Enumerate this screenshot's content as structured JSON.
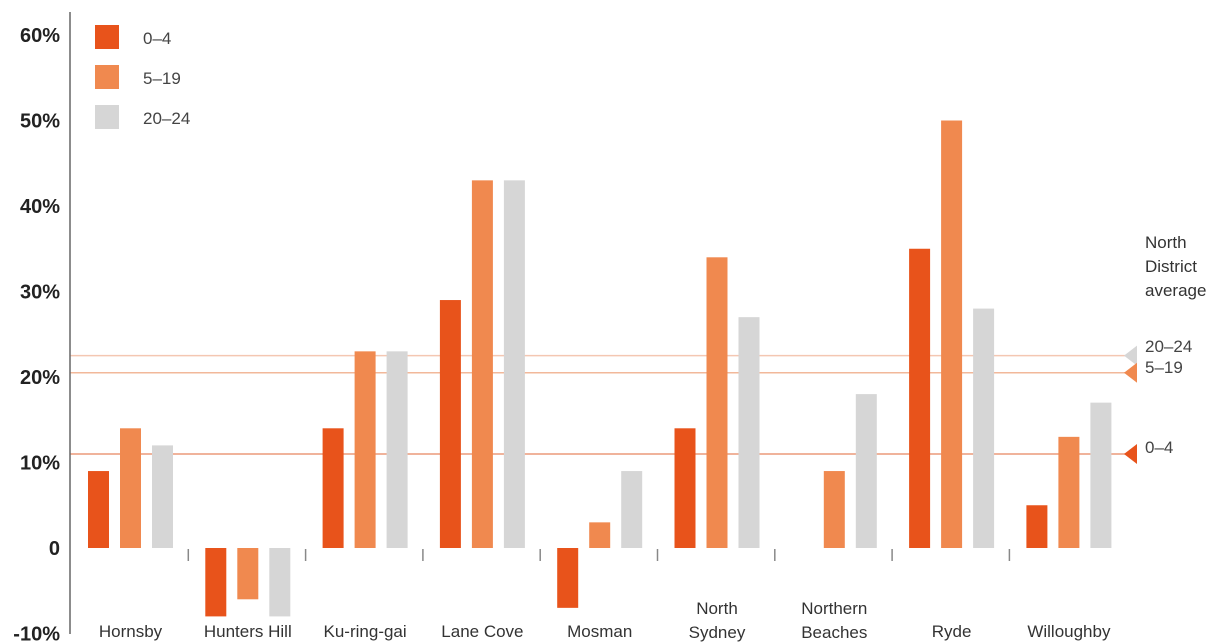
{
  "colors": {
    "series_0_4": "#e8531b",
    "series_5_19": "#f0894f",
    "series_20_24": "#d6d6d6",
    "axis": "#666666"
  },
  "chart_data": {
    "type": "bar",
    "categories": [
      "Hornsby",
      "Hunters Hill",
      "Ku-ring-gai",
      "Lane Cove",
      "Mosman",
      "North Sydney",
      "Northern Beaches",
      "Ryde",
      "Willoughby"
    ],
    "series": [
      {
        "name": "0–4",
        "values": [
          9,
          -8,
          14,
          29,
          -7,
          14,
          0,
          35,
          5
        ]
      },
      {
        "name": "5–19",
        "values": [
          14,
          -6,
          23,
          43,
          3,
          34,
          9,
          50,
          13
        ]
      },
      {
        "name": "20–24",
        "values": [
          12,
          -8,
          23,
          43,
          9,
          27,
          18,
          28,
          17
        ]
      }
    ],
    "ytick_labels": [
      "60%",
      "50%",
      "40%",
      "30%",
      "20%",
      "10%",
      "0",
      "-10%"
    ],
    "ytick_values": [
      60,
      50,
      40,
      30,
      20,
      10,
      0,
      -10
    ],
    "ylim": [
      -10,
      60
    ],
    "legend": {
      "placement": "top-left",
      "entries": [
        "0–4",
        "5–19",
        "20–24"
      ]
    },
    "reference_lines": {
      "title": "North District average",
      "lines": [
        {
          "label": "20–24",
          "value": 22.5
        },
        {
          "label": "5–19",
          "value": 20.5
        },
        {
          "label": "0–4",
          "value": 11
        }
      ]
    }
  }
}
